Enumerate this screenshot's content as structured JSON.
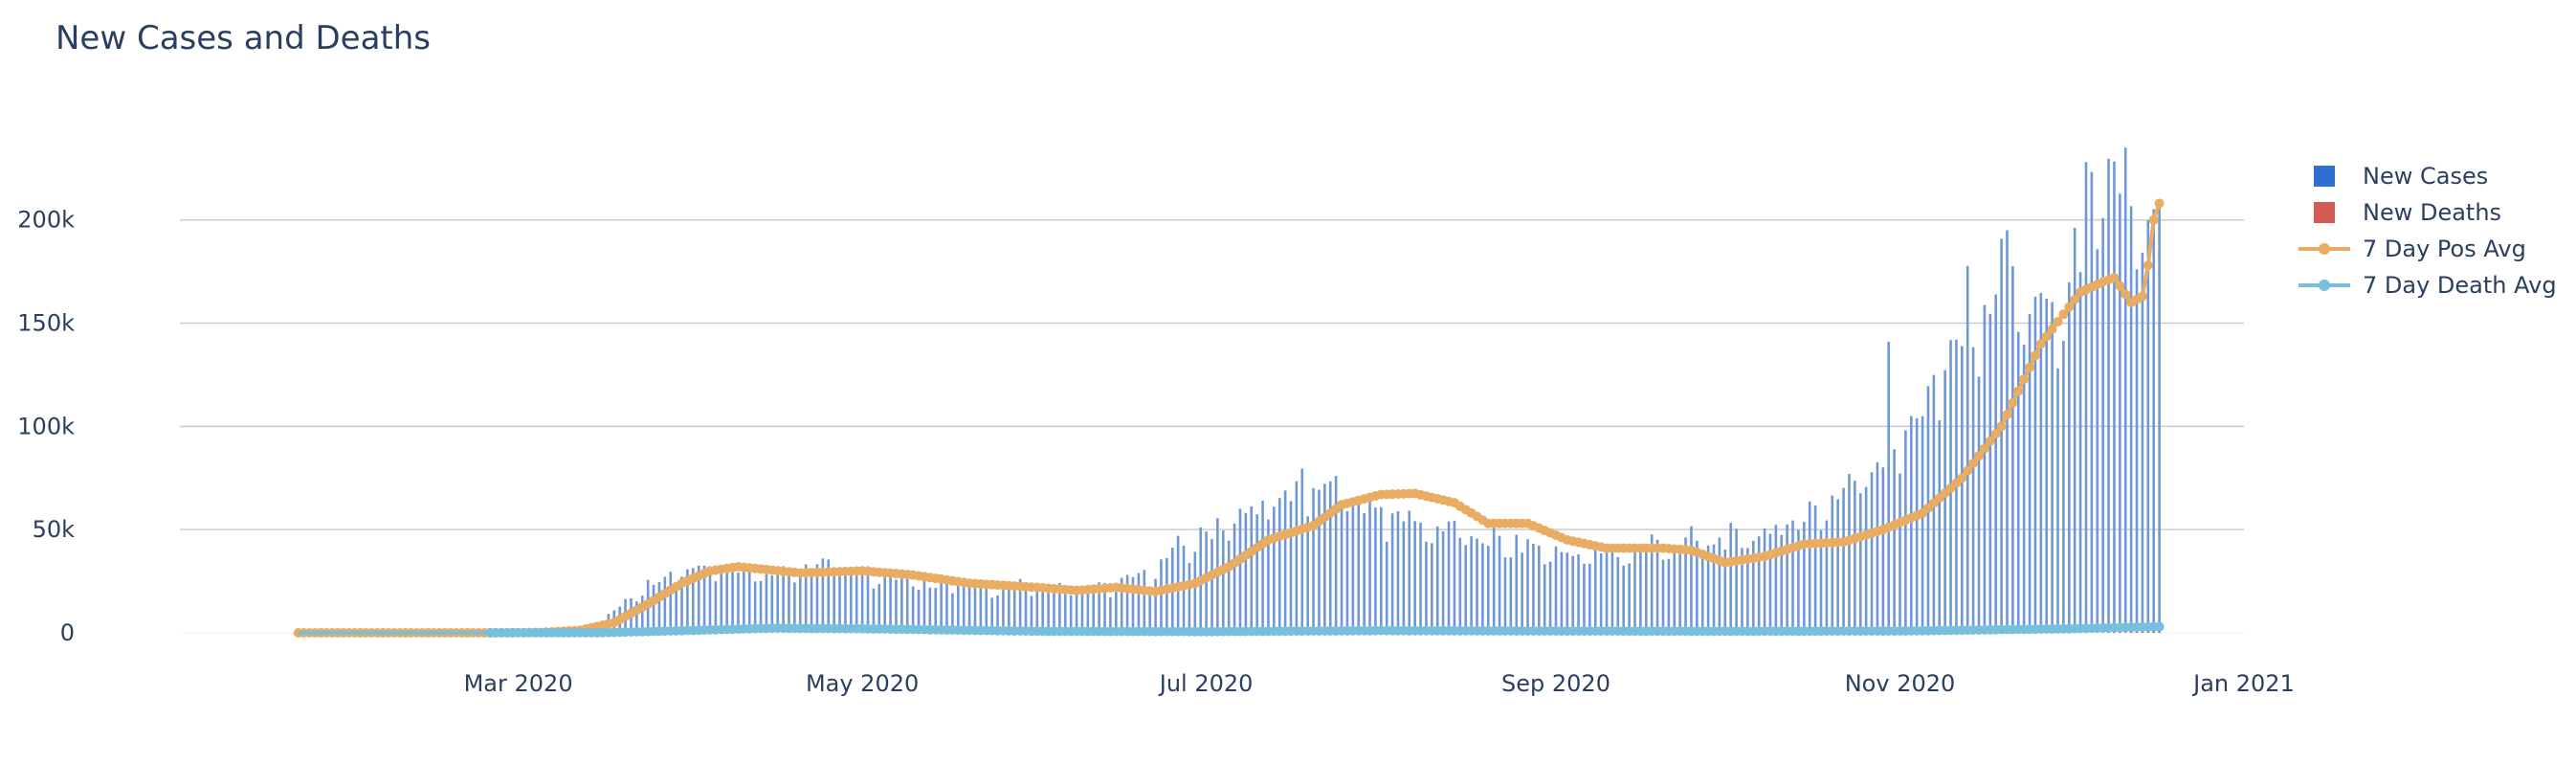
{
  "chart_data": {
    "type": "bar",
    "title": "New Cases and Deaths",
    "xlabel": "",
    "ylabel": "",
    "x_range": [
      "2020-01-01",
      "2021-01-01"
    ],
    "ylim": [
      0,
      230000
    ],
    "grid": true,
    "legend_position": "top-right",
    "x_ticks": [
      {
        "value": "2020-03-01",
        "label": "Mar 2020"
      },
      {
        "value": "2020-05-01",
        "label": "May 2020"
      },
      {
        "value": "2020-07-01",
        "label": "Jul 2020"
      },
      {
        "value": "2020-09-01",
        "label": "Sep 2020"
      },
      {
        "value": "2020-11-01",
        "label": "Nov 2020"
      },
      {
        "value": "2021-01-01",
        "label": "Jan 2021"
      }
    ],
    "y_ticks": [
      {
        "value": 0,
        "label": "0"
      },
      {
        "value": 50000,
        "label": "50k"
      },
      {
        "value": 100000,
        "label": "100k"
      },
      {
        "value": 150000,
        "label": "150k"
      },
      {
        "value": 200000,
        "label": "200k"
      }
    ],
    "legend": [
      {
        "name": "New Cases",
        "color": "#2e6fd4",
        "marker": "square"
      },
      {
        "name": "New Deaths",
        "color": "#d15b55",
        "marker": "square"
      },
      {
        "name": "7 Day Pos Avg",
        "color": "#e8ad62",
        "marker": "line-dot"
      },
      {
        "name": "7 Day Death Avg",
        "color": "#77bfdc",
        "marker": "line-dot"
      }
    ],
    "start_date": "2020-01-22",
    "end_date": "2020-12-17",
    "series": [
      {
        "name": "New Cases",
        "type": "bar",
        "color": "#6f97d6",
        "knots": [
          [
            "2020-01-22",
            0
          ],
          [
            "2020-02-27",
            50
          ],
          [
            "2020-03-05",
            300
          ],
          [
            "2020-03-10",
            1000
          ],
          [
            "2020-03-15",
            3500
          ],
          [
            "2020-03-20",
            16000
          ],
          [
            "2020-03-25",
            26000
          ],
          [
            "2020-03-31",
            32000
          ],
          [
            "2020-04-04",
            33000
          ],
          [
            "2020-04-10",
            31000
          ],
          [
            "2020-04-20",
            30000
          ],
          [
            "2020-04-24",
            34000
          ],
          [
            "2020-05-01",
            30000
          ],
          [
            "2020-05-10",
            25000
          ],
          [
            "2020-05-20",
            23000
          ],
          [
            "2020-06-01",
            22000
          ],
          [
            "2020-06-10",
            20000
          ],
          [
            "2020-06-20",
            28000
          ],
          [
            "2020-06-27",
            42000
          ],
          [
            "2020-07-05",
            55000
          ],
          [
            "2020-07-12",
            62000
          ],
          [
            "2020-07-18",
            72000
          ],
          [
            "2020-07-25",
            67000
          ],
          [
            "2020-08-01",
            60000
          ],
          [
            "2020-08-10",
            52000
          ],
          [
            "2020-08-20",
            45000
          ],
          [
            "2020-08-27",
            42000
          ],
          [
            "2020-09-05",
            38000
          ],
          [
            "2020-09-12",
            38000
          ],
          [
            "2020-09-18",
            43000
          ],
          [
            "2020-09-25",
            44000
          ],
          [
            "2020-10-02",
            45000
          ],
          [
            "2020-10-09",
            50000
          ],
          [
            "2020-10-16",
            58000
          ],
          [
            "2020-10-23",
            72000
          ],
          [
            "2020-10-30",
            90000
          ],
          [
            "2020-11-06",
            115000
          ],
          [
            "2020-11-13",
            150000
          ],
          [
            "2020-11-20",
            180000
          ],
          [
            "2020-11-26",
            150000
          ],
          [
            "2020-12-01",
            165000
          ],
          [
            "2020-12-04",
            205000
          ],
          [
            "2020-12-08",
            210000
          ],
          [
            "2020-12-11",
            225000
          ],
          [
            "2020-12-14",
            195000
          ],
          [
            "2020-12-17",
            190000
          ]
        ],
        "peaks": [
          [
            "2020-04-24",
            36000
          ],
          [
            "2020-07-24",
            76000
          ],
          [
            "2020-10-30",
            141000
          ],
          [
            "2020-11-20",
            195000
          ],
          [
            "2020-12-04",
            228000
          ],
          [
            "2020-12-11",
            235000
          ]
        ]
      },
      {
        "name": "New Deaths",
        "type": "bar",
        "color": "#d15b55",
        "knots": [
          [
            "2020-01-22",
            0
          ],
          [
            "2020-03-15",
            50
          ],
          [
            "2020-04-01",
            1000
          ],
          [
            "2020-04-15",
            2300
          ],
          [
            "2020-05-01",
            2000
          ],
          [
            "2020-06-01",
            800
          ],
          [
            "2020-07-01",
            600
          ],
          [
            "2020-08-01",
            1100
          ],
          [
            "2020-09-01",
            900
          ],
          [
            "2020-10-01",
            800
          ],
          [
            "2020-11-01",
            900
          ],
          [
            "2020-12-01",
            2000
          ],
          [
            "2020-12-17",
            3000
          ]
        ]
      },
      {
        "name": "7 Day Pos Avg",
        "type": "line",
        "color": "#e8ad62",
        "knots": [
          [
            "2020-01-22",
            0
          ],
          [
            "2020-02-25",
            10
          ],
          [
            "2020-03-05",
            200
          ],
          [
            "2020-03-12",
            1200
          ],
          [
            "2020-03-18",
            5000
          ],
          [
            "2020-03-24",
            14000
          ],
          [
            "2020-03-30",
            24000
          ],
          [
            "2020-04-04",
            30000
          ],
          [
            "2020-04-09",
            32000
          ],
          [
            "2020-04-20",
            29000
          ],
          [
            "2020-05-01",
            30000
          ],
          [
            "2020-05-10",
            28000
          ],
          [
            "2020-05-20",
            24000
          ],
          [
            "2020-06-01",
            22000
          ],
          [
            "2020-06-08",
            20500
          ],
          [
            "2020-06-15",
            22000
          ],
          [
            "2020-06-22",
            20000
          ],
          [
            "2020-06-29",
            24000
          ],
          [
            "2020-07-05",
            32000
          ],
          [
            "2020-07-12",
            45000
          ],
          [
            "2020-07-20",
            52000
          ],
          [
            "2020-07-25",
            62000
          ],
          [
            "2020-08-01",
            67000
          ],
          [
            "2020-08-07",
            67500
          ],
          [
            "2020-08-14",
            63000
          ],
          [
            "2020-08-20",
            53000
          ],
          [
            "2020-08-27",
            53000
          ],
          [
            "2020-09-03",
            45000
          ],
          [
            "2020-09-10",
            41000
          ],
          [
            "2020-09-20",
            41000
          ],
          [
            "2020-09-25",
            40000
          ],
          [
            "2020-10-01",
            34000
          ],
          [
            "2020-10-08",
            37000
          ],
          [
            "2020-10-15",
            43000
          ],
          [
            "2020-10-22",
            44000
          ],
          [
            "2020-10-29",
            50000
          ],
          [
            "2020-11-05",
            58000
          ],
          [
            "2020-11-12",
            75000
          ],
          [
            "2020-11-19",
            100000
          ],
          [
            "2020-11-26",
            140000
          ],
          [
            "2020-12-03",
            165000
          ],
          [
            "2020-12-07",
            170000
          ],
          [
            "2020-12-09",
            172000
          ],
          [
            "2020-12-12",
            160000
          ],
          [
            "2020-12-14",
            163000
          ],
          [
            "2020-12-15",
            178000
          ],
          [
            "2020-12-16",
            200000
          ],
          [
            "2020-12-17",
            208000
          ]
        ]
      },
      {
        "name": "7 Day Death Avg",
        "type": "line",
        "color": "#77bfdc",
        "knots": [
          [
            "2020-01-22",
            0
          ],
          [
            "2020-03-15",
            50
          ],
          [
            "2020-04-01",
            1200
          ],
          [
            "2020-04-15",
            2300
          ],
          [
            "2020-05-01",
            2000
          ],
          [
            "2020-06-01",
            800
          ],
          [
            "2020-07-01",
            600
          ],
          [
            "2020-08-01",
            1100
          ],
          [
            "2020-09-01",
            900
          ],
          [
            "2020-10-01",
            800
          ],
          [
            "2020-11-01",
            900
          ],
          [
            "2020-12-01",
            2000
          ],
          [
            "2020-12-17",
            3000
          ]
        ]
      }
    ]
  }
}
